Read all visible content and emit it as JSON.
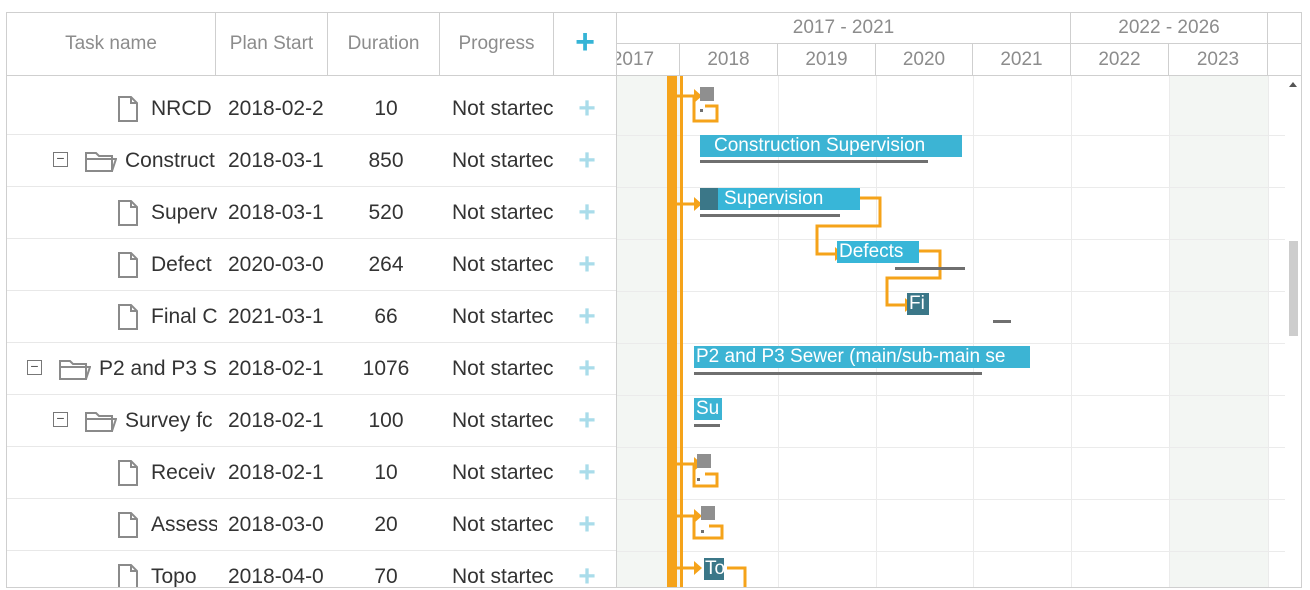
{
  "grid": {
    "columns": {
      "task_name": "Task name",
      "plan_start": "Plan Start",
      "duration": "Duration",
      "progress": "Progress",
      "add": "+"
    },
    "rows": [
      {
        "name": "NRCD",
        "start": "2018-02-2",
        "duration": "10",
        "progress": "Not startec",
        "type": "task",
        "level": 2
      },
      {
        "name": "Construct",
        "start": "2018-03-1",
        "duration": "850",
        "progress": "Not startec",
        "type": "folder",
        "level": 1
      },
      {
        "name": "Superv",
        "start": "2018-03-1",
        "duration": "520",
        "progress": "Not startec",
        "type": "task",
        "level": 2
      },
      {
        "name": "Defect",
        "start": "2020-03-0",
        "duration": "264",
        "progress": "Not startec",
        "type": "task",
        "level": 2
      },
      {
        "name": "Final C",
        "start": "2021-03-1",
        "duration": "66",
        "progress": "Not startec",
        "type": "task",
        "level": 2
      },
      {
        "name": "P2 and P3 S",
        "start": "2018-02-1",
        "duration": "1076",
        "progress": "Not startec",
        "type": "folder",
        "level": 0
      },
      {
        "name": "Survey fc",
        "start": "2018-02-1",
        "duration": "100",
        "progress": "Not startec",
        "type": "folder",
        "level": 1
      },
      {
        "name": "Receiv",
        "start": "2018-02-1",
        "duration": "10",
        "progress": "Not startec",
        "type": "task",
        "level": 2
      },
      {
        "name": "Assess",
        "start": "2018-03-0",
        "duration": "20",
        "progress": "Not startec",
        "type": "task",
        "level": 2
      },
      {
        "name": "Topo",
        "start": "2018-04-0",
        "duration": "70",
        "progress": "Not startec",
        "type": "task",
        "level": 2
      }
    ]
  },
  "gantt": {
    "scale_top": [
      "2017 - 2021",
      "2022 - 2026"
    ],
    "scale_bottom": [
      "2017",
      "2018",
      "2019",
      "2020",
      "2021",
      "2022",
      "2023"
    ],
    "bars": {
      "construction": "Construction Supervision",
      "supervision": "Supervision",
      "defects": "Defects",
      "final": "Fi",
      "p2p3": "P2 and P3 Sewer (main/sub-main se",
      "survey": "Su",
      "topo": "To"
    }
  },
  "colors": {
    "accent": "#38b6d8",
    "progress_fill": "#3b7788",
    "link": "#f5a31a",
    "baseline": "#6f6f6f"
  }
}
